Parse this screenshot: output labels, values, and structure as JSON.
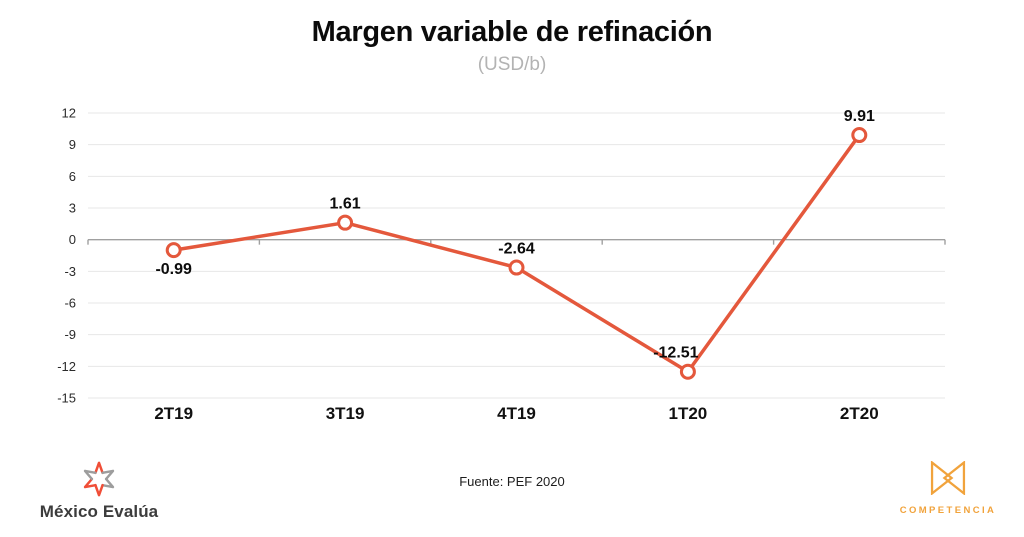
{
  "header": {
    "title": "Margen variable de refinación",
    "subtitle": "(USD/b)"
  },
  "chart_data": {
    "type": "line",
    "title": "Margen variable de refinación",
    "subtitle": "(USD/b)",
    "categories": [
      "2T19",
      "3T19",
      "4T19",
      "1T20",
      "2T20"
    ],
    "values": [
      -0.99,
      1.61,
      -2.64,
      -12.51,
      9.91
    ],
    "point_labels": [
      "-0.99",
      "1.61",
      "-2.64",
      "-12.51",
      "9.91"
    ],
    "label_positions": [
      "below",
      "above",
      "above",
      "above-left",
      "above"
    ],
    "yticks": [
      12,
      9,
      6,
      3,
      0,
      -3,
      -6,
      -9,
      -12,
      -15
    ],
    "ylim": [
      -15,
      12
    ],
    "xlabel": "",
    "ylabel": "",
    "grid": true,
    "legend": "none",
    "line_color": "#e4583c",
    "marker_fill": "#ffffff",
    "grid_color": "#e7e7e7",
    "zero_axis_color": "#a0a0a0",
    "tick_label_color": "#2b2b2b",
    "data_label_color": "#0c0c0c"
  },
  "footer": {
    "source": "Fuente: PEF 2020",
    "left_logo": {
      "text": "México Evalúa",
      "icon": "star-burst-icon",
      "icon_orange": "#f04e37",
      "icon_gray": "#9d9d9d"
    },
    "right_logo": {
      "text": "COMPETENCIA",
      "icon": "bowtie-icon",
      "color": "#f1a33c"
    }
  }
}
